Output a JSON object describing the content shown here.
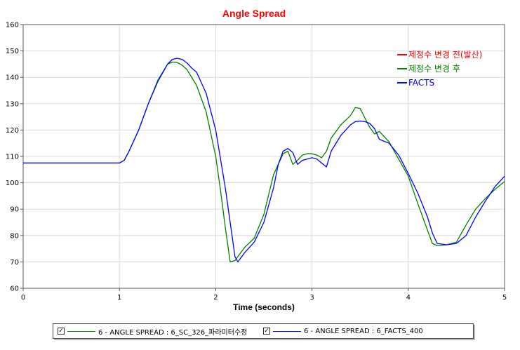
{
  "chart_data": {
    "type": "line",
    "title": "Angle Spread",
    "xlabel": "Time (seconds)",
    "ylabel": "",
    "xlim": [
      0,
      5
    ],
    "ylim": [
      60,
      160
    ],
    "xticks": [
      "0",
      "1",
      "2",
      "3",
      "4",
      "5"
    ],
    "yticks": [
      "60",
      "70",
      "80",
      "90",
      "100",
      "110",
      "120",
      "130",
      "140",
      "150",
      "160"
    ],
    "grid": true,
    "colors": {
      "title": "#ff0000",
      "red": "#ff0000",
      "green": "#008000",
      "blue": "#0000ff"
    },
    "series": [
      {
        "name": "6 - ANGLE SPREAD : 6_SC_326_파라미터수정",
        "color": "#008000",
        "x": [
          0,
          1.0,
          1.05,
          1.1,
          1.2,
          1.3,
          1.4,
          1.5,
          1.55,
          1.6,
          1.65,
          1.7,
          1.8,
          1.9,
          2.0,
          2.05,
          2.1,
          2.15,
          2.2,
          2.25,
          2.3,
          2.4,
          2.5,
          2.6,
          2.7,
          2.75,
          2.8,
          2.85,
          2.9,
          2.95,
          3.0,
          3.05,
          3.1,
          3.15,
          3.2,
          3.3,
          3.4,
          3.45,
          3.5,
          3.55,
          3.6,
          3.65,
          3.7,
          3.8,
          3.9,
          4.0,
          4.1,
          4.2,
          4.25,
          4.3,
          4.4,
          4.5,
          4.6,
          4.7,
          4.8,
          4.9,
          5.0
        ],
        "y": [
          107.5,
          107.5,
          108.5,
          112,
          120,
          130,
          139,
          145,
          145.8,
          145.6,
          144.6,
          143,
          137,
          127,
          110,
          97,
          83,
          70,
          70.5,
          73,
          75.5,
          79,
          88,
          103,
          111,
          112,
          107,
          108.5,
          110.5,
          111,
          111,
          110.5,
          109.5,
          112,
          117,
          122,
          125.5,
          128.5,
          128.2,
          124.5,
          121,
          118.5,
          119.5,
          115.5,
          109,
          102.5,
          92,
          82,
          77,
          76.2,
          76.5,
          77.5,
          84,
          90,
          94,
          97.5,
          100.5
        ]
      },
      {
        "name": "6 - ANGLE SPREAD : 6_FACTS_400",
        "color": "#0000ff",
        "x": [
          0,
          1.0,
          1.05,
          1.1,
          1.2,
          1.3,
          1.4,
          1.5,
          1.55,
          1.6,
          1.65,
          1.7,
          1.75,
          1.8,
          1.9,
          2.0,
          2.1,
          2.15,
          2.2,
          2.23,
          2.3,
          2.4,
          2.5,
          2.6,
          2.65,
          2.7,
          2.75,
          2.8,
          2.85,
          2.9,
          3.0,
          3.05,
          3.1,
          3.15,
          3.2,
          3.3,
          3.4,
          3.45,
          3.5,
          3.55,
          3.6,
          3.65,
          3.7,
          3.8,
          3.9,
          4.0,
          4.1,
          4.2,
          4.25,
          4.3,
          4.4,
          4.5,
          4.6,
          4.7,
          4.8,
          4.9,
          5.0
        ],
        "y": [
          107.5,
          107.5,
          108.5,
          112,
          120,
          130,
          138.5,
          145,
          146.8,
          147.2,
          146.8,
          145.5,
          143.5,
          142,
          134,
          120,
          98,
          85,
          72,
          70,
          73.5,
          77.5,
          85,
          98,
          107,
          112,
          113,
          111.5,
          107,
          108.5,
          109.5,
          109,
          107.5,
          106,
          112,
          118,
          122,
          123.2,
          123.4,
          123.2,
          122.5,
          120.5,
          116.5,
          115,
          110.5,
          103.5,
          96,
          87,
          81,
          77,
          76.5,
          77,
          80,
          87,
          93,
          98.5,
          102.5
        ]
      }
    ],
    "annotations": [
      {
        "text": "제정수 변경 전(발산)",
        "color": "#ff0000"
      },
      {
        "text": "제정수 변경 후",
        "color": "#008000"
      },
      {
        "text": "FACTS",
        "color": "#0000ff"
      }
    ],
    "legend_position": "bottom"
  },
  "legend": {
    "check_glyph": "✓",
    "entries": [
      {
        "label": "6 - ANGLE SPREAD : 6_SC_326_파라미터수정",
        "color": "#008000",
        "checked": true
      },
      {
        "label": "6 - ANGLE SPREAD : 6_FACTS_400",
        "color": "#0000ff",
        "checked": true
      }
    ]
  }
}
